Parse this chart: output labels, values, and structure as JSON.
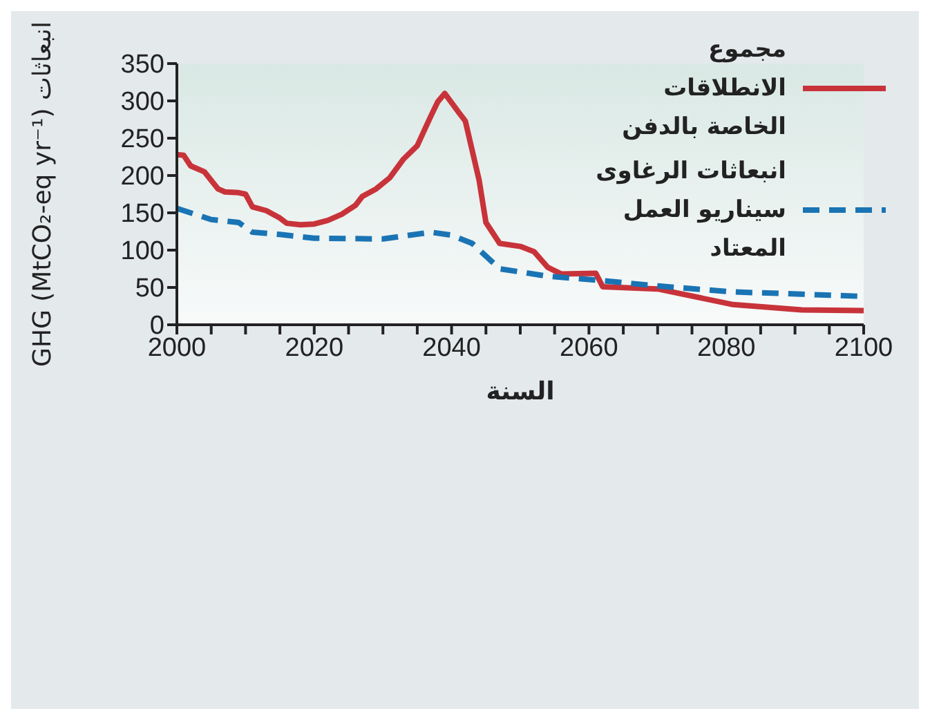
{
  "chart_data": {
    "type": "line",
    "xlabel": "السنة",
    "ylabel": "انبعاثات GHG (MtCO₂-eq yr⁻¹)",
    "xlim": [
      2000,
      2100
    ],
    "ylim": [
      0,
      350
    ],
    "xticks": [
      2000,
      {
        "value": 2005,
        "label": null
      },
      {
        "value": 2010,
        "label": null
      },
      {
        "value": 2015,
        "label": null
      },
      2020,
      {
        "value": 2025,
        "label": null
      },
      {
        "value": 2030,
        "label": null
      },
      {
        "value": 2035,
        "label": null
      },
      2040,
      {
        "value": 2045,
        "label": null
      },
      {
        "value": 2050,
        "label": null
      },
      {
        "value": 2055,
        "label": null
      },
      2060,
      {
        "value": 2065,
        "label": null
      },
      {
        "value": 2070,
        "label": null
      },
      {
        "value": 2075,
        "label": null
      },
      2080,
      {
        "value": 2085,
        "label": null
      },
      {
        "value": 2090,
        "label": null
      },
      {
        "value": 2095,
        "label": null
      },
      2100
    ],
    "yticks": [
      0,
      50,
      100,
      150,
      200,
      250,
      300,
      350
    ],
    "grid": false,
    "legend": "top right",
    "series": [
      {
        "name": "مجموع الانطلاقات الخاصة بالدفن",
        "color": "#c8333a",
        "line_style": "solid",
        "x": [
          2000,
          2001,
          2002,
          2004,
          2006,
          2007,
          2009,
          2010,
          2011,
          2013,
          2015,
          2016,
          2018,
          2020,
          2022,
          2024,
          2026,
          2027,
          2029,
          2031,
          2033,
          2035,
          2036,
          2037,
          2038,
          2039,
          2041,
          2042,
          2044,
          2045,
          2047,
          2050,
          2052,
          2054,
          2056,
          2061,
          2062,
          2070,
          2081,
          2091,
          2100
        ],
        "values": [
          228,
          227,
          213,
          205,
          182,
          178,
          177,
          175,
          158,
          153,
          143,
          136,
          134,
          135,
          140,
          148,
          160,
          172,
          182,
          197,
          222,
          240,
          260,
          280,
          299,
          310,
          285,
          273,
          194,
          137,
          109,
          105,
          98,
          77,
          68,
          69,
          51,
          48,
          27,
          20,
          19
        ]
      },
      {
        "name": "انبعاثات الرغاوى سيناريو العمل المعتاد",
        "color": "#1a74b4",
        "line_style": "dashed",
        "x": [
          2000,
          2005,
          2009,
          2011,
          2015,
          2020,
          2030,
          2037,
          2040,
          2043,
          2047,
          2054,
          2061,
          2070,
          2081,
          2091,
          2100
        ],
        "values": [
          156,
          141,
          137,
          124,
          121,
          116,
          115,
          124,
          120,
          109,
          75,
          65,
          60,
          52,
          44,
          41,
          38
        ]
      }
    ]
  }
}
